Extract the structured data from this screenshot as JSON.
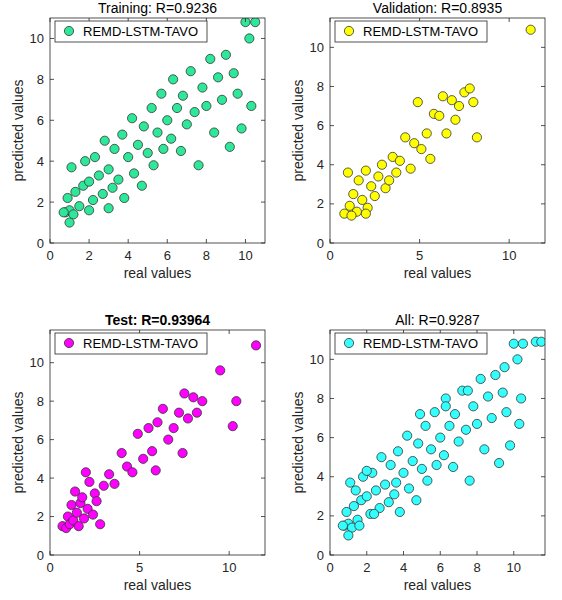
{
  "chart_data": [
    {
      "type": "scatter",
      "title": "Training: R=0.9236",
      "x_label": "real values",
      "y_label": "predicted values",
      "legend": "northwest",
      "marker": "circle",
      "xlim": [
        0,
        11
      ],
      "ylim": [
        0,
        11
      ],
      "xticks": [
        0,
        2,
        4,
        6,
        8,
        10
      ],
      "yticks": [
        0,
        2,
        4,
        6,
        8,
        10
      ],
      "x": [
        0.8,
        1,
        1.2,
        0.9,
        1.1,
        1.3,
        1.5,
        1.7,
        1.8,
        2,
        2.2,
        2.3,
        2.5,
        2.7,
        2.8,
        3,
        3.2,
        3.3,
        3.5,
        3.7,
        3.8,
        4,
        4.2,
        4.3,
        4.5,
        4.7,
        4.8,
        5,
        5.2,
        5.3,
        5.5,
        5.7,
        5.8,
        6,
        6.2,
        6.3,
        6.5,
        6.7,
        6.8,
        7,
        7.2,
        7.4,
        7.6,
        7.8,
        8,
        8.2,
        8.4,
        8.6,
        8.8,
        9,
        9.2,
        9.4,
        9.6,
        9.8,
        10,
        10.2,
        10.5,
        10.3,
        1.0,
        2.0,
        3.0,
        0.7
      ],
      "series": [
        {
          "name": "REMD-LSTM-TAVO",
          "color": "#2ee89a",
          "values": [
            1.5,
            1.6,
            1.4,
            2.2,
            3.7,
            2.5,
            1.8,
            2.8,
            4.0,
            3.0,
            2.1,
            4.2,
            3.3,
            2.4,
            5.0,
            3.6,
            2.7,
            4.6,
            3.1,
            5.3,
            2.2,
            4.2,
            6.1,
            3.4,
            4.8,
            2.8,
            5.7,
            4.4,
            6.6,
            3.8,
            5.4,
            7.3,
            4.6,
            6.0,
            5.1,
            8.0,
            6.6,
            4.5,
            7.2,
            5.8,
            8.4,
            6.4,
            3.8,
            7.6,
            6.7,
            9.0,
            5.4,
            8.1,
            7.0,
            9.2,
            4.7,
            8.3,
            7.3,
            5.6,
            10.8,
            10.0,
            10.8,
            6.7,
            1.0,
            1.6,
            1.7,
            1.5
          ]
        }
      ]
    },
    {
      "type": "scatter",
      "title": "Validation: R=0.8935",
      "x_label": "real values",
      "y_label": "predicted values",
      "legend": "northwest",
      "marker": "circle",
      "xlim": [
        0,
        12
      ],
      "ylim": [
        0,
        11.5
      ],
      "xticks": [
        0,
        5,
        10
      ],
      "yticks": [
        0,
        2,
        4,
        6,
        8,
        10
      ],
      "x": [
        0.8,
        1,
        1.1,
        1.3,
        1.5,
        1.6,
        1.8,
        2,
        2.1,
        2.3,
        2.5,
        2.7,
        2.9,
        3.1,
        3.3,
        3.5,
        3.7,
        3.9,
        4.2,
        4.5,
        4.7,
        4.9,
        5.1,
        5.4,
        5.6,
        5.8,
        6.1,
        6.3,
        6.5,
        6.8,
        7,
        7.2,
        7.5,
        7.8,
        8,
        8.2,
        11.2,
        2.0,
        1.2
      ],
      "series": [
        {
          "name": "REMD-LSTM-TAVO",
          "color": "#ffff00",
          "values": [
            1.5,
            3.6,
            1.9,
            2.5,
            1.6,
            3.2,
            2.2,
            3.7,
            1.8,
            2.9,
            2.4,
            3.4,
            4.0,
            2.8,
            3.2,
            4.4,
            3.6,
            4.2,
            5.4,
            3.8,
            5.1,
            7.2,
            4.8,
            5.6,
            4.3,
            6.6,
            6.5,
            7.5,
            5.6,
            7.3,
            6.3,
            7.0,
            7.7,
            7.9,
            7.2,
            5.4,
            10.9,
            1.5,
            1.4
          ]
        }
      ]
    },
    {
      "type": "scatter",
      "title": "Test: R=0.93964",
      "x_label": "real values",
      "y_label": "predicted values",
      "legend": "northwest",
      "marker": "circle",
      "xlim": [
        0,
        12
      ],
      "ylim": [
        0,
        11.7
      ],
      "xticks": [
        0,
        5,
        10
      ],
      "yticks": [
        0,
        2,
        4,
        6,
        8,
        10
      ],
      "x": [
        0.7,
        0.9,
        1.0,
        1.1,
        1.2,
        1.3,
        1.4,
        1.5,
        1.6,
        1.7,
        1.8,
        1.9,
        2.0,
        2.1,
        2.2,
        2.4,
        2.5,
        2.6,
        2.8,
        3.0,
        3.3,
        3.6,
        4.0,
        4.3,
        4.6,
        4.9,
        5.2,
        5.5,
        5.7,
        6.0,
        6.3,
        6.6,
        6.9,
        7.2,
        7.5,
        7.4,
        7.7,
        8.0,
        8.2,
        8.5,
        9.5,
        10.2,
        10.4,
        11.5,
        5.9
      ],
      "series": [
        {
          "name": "REMD-LSTM-TAVO",
          "color": "#ff00ff",
          "values": [
            1.5,
            1.4,
            2.0,
            1.6,
            2.6,
            1.8,
            3.3,
            2.2,
            1.5,
            2.7,
            3.0,
            1.9,
            4.3,
            2.4,
            3.8,
            2.1,
            3.2,
            2.8,
            1.6,
            3.6,
            4.2,
            3.7,
            5.3,
            4.6,
            4.3,
            6.3,
            5.0,
            6.6,
            5.4,
            6.9,
            7.6,
            6.0,
            6.6,
            7.4,
            8.4,
            5.3,
            7.1,
            8.2,
            7.4,
            8.0,
            9.6,
            6.7,
            8.0,
            10.9,
            4.4
          ]
        }
      ]
    },
    {
      "type": "scatter",
      "title": "All: R=0.9287",
      "x_label": "real values",
      "y_label": "predicted values",
      "legend": "northwest",
      "marker": "circle",
      "xlim": [
        0,
        11.7
      ],
      "ylim": [
        0,
        11.5
      ],
      "xticks": [
        0,
        2,
        4,
        6,
        8,
        10
      ],
      "yticks": [
        0,
        2,
        4,
        6,
        8,
        10
      ],
      "x": [
        0.8,
        1,
        1.2,
        0.9,
        1.1,
        1.3,
        1.5,
        1.7,
        1.8,
        2,
        2.2,
        2.3,
        2.5,
        2.7,
        2.8,
        3,
        3.2,
        3.3,
        3.5,
        3.7,
        3.8,
        4,
        4.2,
        4.3,
        4.5,
        4.7,
        4.8,
        5,
        5.2,
        5.3,
        5.5,
        5.7,
        5.8,
        6,
        6.2,
        6.3,
        6.5,
        6.7,
        6.8,
        7,
        7.2,
        7.4,
        7.6,
        7.8,
        8,
        8.2,
        8.4,
        8.6,
        8.8,
        9,
        9.2,
        9.4,
        9.6,
        9.8,
        10,
        10.2,
        10.5,
        10.3,
        1.0,
        0.7,
        1.6,
        2.4,
        4.9,
        6.3,
        7.5,
        9.5,
        10.4,
        11.2,
        11.5,
        1.4,
        2.0,
        3.6
      ],
      "series": [
        {
          "name": "REMD-LSTM-TAVO",
          "color": "#33ffff",
          "values": [
            1.5,
            1.6,
            1.4,
            2.2,
            3.7,
            2.5,
            1.8,
            2.8,
            4.0,
            3.0,
            2.1,
            4.2,
            3.3,
            2.4,
            5.0,
            3.6,
            2.7,
            4.6,
            3.1,
            5.3,
            2.2,
            4.2,
            6.1,
            3.4,
            4.8,
            2.8,
            5.7,
            4.4,
            6.6,
            3.8,
            5.4,
            7.3,
            4.6,
            6.0,
            5.1,
            8.0,
            6.6,
            4.5,
            7.2,
            5.8,
            8.4,
            6.4,
            3.8,
            7.6,
            6.7,
            9.0,
            5.4,
            8.1,
            7.0,
            9.2,
            4.7,
            8.3,
            7.3,
            5.6,
            10.8,
            10.0,
            10.8,
            6.7,
            1.0,
            1.5,
            1.5,
            2.1,
            7.2,
            7.6,
            8.4,
            9.6,
            8.0,
            10.9,
            10.9,
            3.3,
            4.3,
            3.7
          ]
        }
      ]
    }
  ]
}
